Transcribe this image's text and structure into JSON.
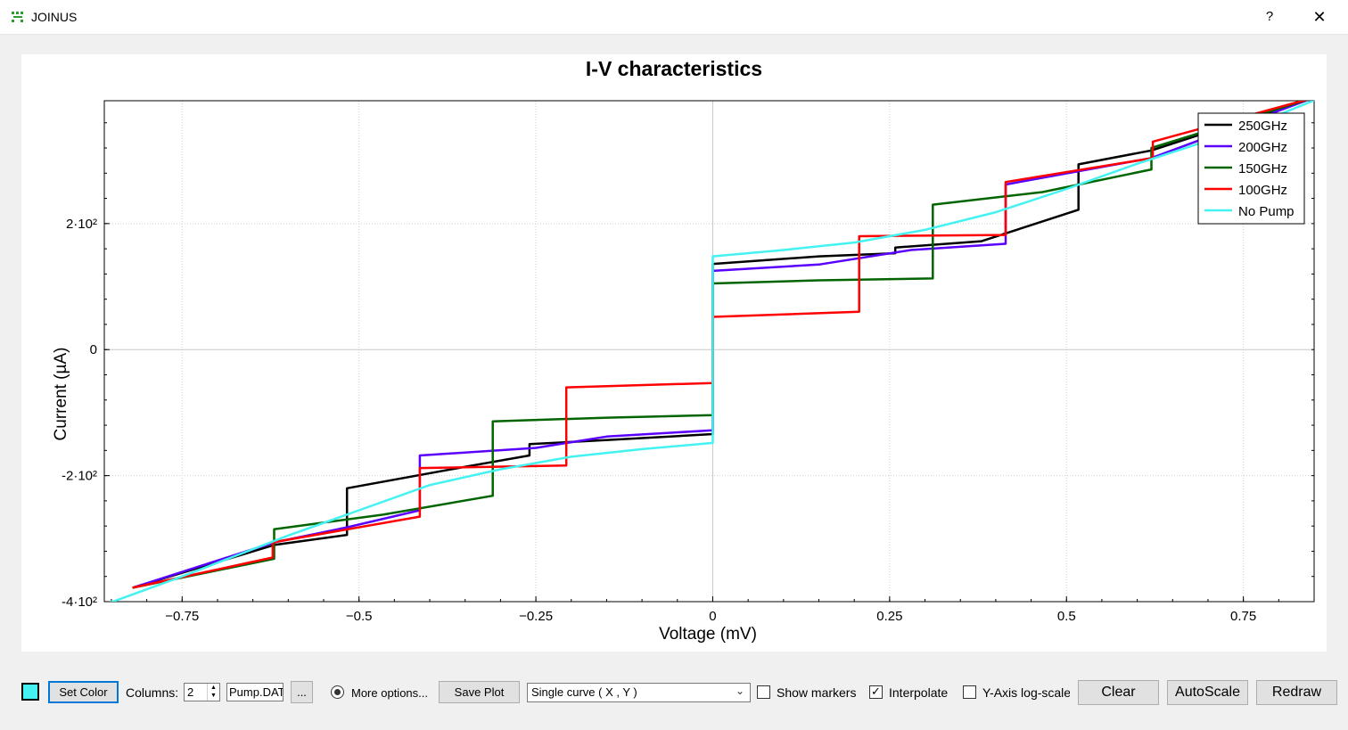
{
  "window": {
    "title": "JOINUS",
    "help": "?",
    "close": "✕"
  },
  "chart_data": {
    "type": "line",
    "title": "I-V characteristics",
    "xlabel": "Voltage (mV)",
    "ylabel": "Current (µA)",
    "xlim": [
      -0.86,
      0.85
    ],
    "ylim": [
      -400,
      395
    ],
    "x_ticks": [
      -0.75,
      -0.5,
      -0.25,
      0,
      0.25,
      0.5,
      0.75
    ],
    "x_tick_labels": [
      "−0.75",
      "−0.5",
      "−0.25",
      "0",
      "0.25",
      "0.5",
      "0.75"
    ],
    "y_ticks": [
      -400,
      -200,
      0,
      200
    ],
    "y_tick_labels": [
      "-4·10²",
      "-2·10²",
      "0",
      "2·10²"
    ],
    "grid": true,
    "legend_position": "top-right",
    "series": [
      {
        "name": "250GHz",
        "color": "#000000",
        "points": [
          [
            -0.82,
            -378
          ],
          [
            -0.62,
            -310
          ],
          [
            -0.517,
            -294
          ],
          [
            -0.517,
            -220
          ],
          [
            -0.35,
            -186
          ],
          [
            -0.259,
            -168
          ],
          [
            -0.259,
            -150
          ],
          [
            -0.14,
            -143
          ],
          [
            0,
            -134
          ],
          [
            0,
            136
          ],
          [
            0.15,
            148
          ],
          [
            0.258,
            153
          ],
          [
            0.258,
            162
          ],
          [
            0.38,
            172
          ],
          [
            0.517,
            222
          ],
          [
            0.517,
            294
          ],
          [
            0.62,
            316
          ],
          [
            0.85,
            400
          ]
        ]
      },
      {
        "name": "200GHz",
        "color": "#5a00ff",
        "points": [
          [
            -0.82,
            -378
          ],
          [
            -0.62,
            -306
          ],
          [
            -0.517,
            -282
          ],
          [
            -0.414,
            -255
          ],
          [
            -0.414,
            -168
          ],
          [
            -0.25,
            -156
          ],
          [
            -0.15,
            -138
          ],
          [
            0,
            -128
          ],
          [
            0,
            125
          ],
          [
            0.15,
            135
          ],
          [
            0.28,
            158
          ],
          [
            0.414,
            168
          ],
          [
            0.414,
            262
          ],
          [
            0.62,
            304
          ],
          [
            0.85,
            400
          ]
        ]
      },
      {
        "name": "150GHz",
        "color": "#006400",
        "points": [
          [
            -0.82,
            -378
          ],
          [
            -0.62,
            -332
          ],
          [
            -0.62,
            -285
          ],
          [
            -0.466,
            -262
          ],
          [
            -0.311,
            -232
          ],
          [
            -0.311,
            -114
          ],
          [
            -0.15,
            -108
          ],
          [
            0,
            -104
          ],
          [
            0,
            105
          ],
          [
            0.15,
            110
          ],
          [
            0.311,
            113
          ],
          [
            0.311,
            230
          ],
          [
            0.466,
            250
          ],
          [
            0.62,
            286
          ],
          [
            0.62,
            320
          ],
          [
            0.85,
            400
          ]
        ]
      },
      {
        "name": "100GHz",
        "color": "#ff0000",
        "points": [
          [
            -0.82,
            -378
          ],
          [
            -0.622,
            -330
          ],
          [
            -0.622,
            -306
          ],
          [
            -0.414,
            -265
          ],
          [
            -0.414,
            -188
          ],
          [
            -0.207,
            -184
          ],
          [
            -0.207,
            -60
          ],
          [
            0,
            -53
          ],
          [
            0,
            52
          ],
          [
            0.207,
            60
          ],
          [
            0.207,
            180
          ],
          [
            0.414,
            182
          ],
          [
            0.414,
            266
          ],
          [
            0.622,
            304
          ],
          [
            0.622,
            330
          ],
          [
            0.85,
            400
          ]
        ]
      },
      {
        "name": "No Pump",
        "color": "#44f2f2",
        "points": [
          [
            -0.86,
            -405
          ],
          [
            -0.75,
            -360
          ],
          [
            -0.6,
            -295
          ],
          [
            -0.5,
            -255
          ],
          [
            -0.4,
            -215
          ],
          [
            -0.3,
            -190
          ],
          [
            -0.2,
            -170
          ],
          [
            -0.1,
            -158
          ],
          [
            0,
            -148
          ],
          [
            0,
            148
          ],
          [
            0.1,
            158
          ],
          [
            0.2,
            170
          ],
          [
            0.3,
            190
          ],
          [
            0.4,
            218
          ],
          [
            0.5,
            255
          ],
          [
            0.6,
            295
          ],
          [
            0.75,
            350
          ],
          [
            0.86,
            400
          ]
        ]
      }
    ]
  },
  "controls": {
    "set_color": "Set Color",
    "columns_label": "Columns:",
    "columns_value": "2",
    "file_value": "Pump.DAT",
    "browse": "...",
    "more_options": "More options...",
    "save_plot": "Save Plot",
    "curve_mode": "Single curve ( X , Y )",
    "show_markers": "Show markers",
    "show_markers_checked": false,
    "interpolate": "Interpolate",
    "interpolate_checked": true,
    "y_log": "Y-Axis log-scale",
    "y_log_checked": false,
    "clear": "Clear",
    "autoscale": "AutoScale",
    "redraw": "Redraw",
    "swatch_color": "#44f2f2"
  }
}
